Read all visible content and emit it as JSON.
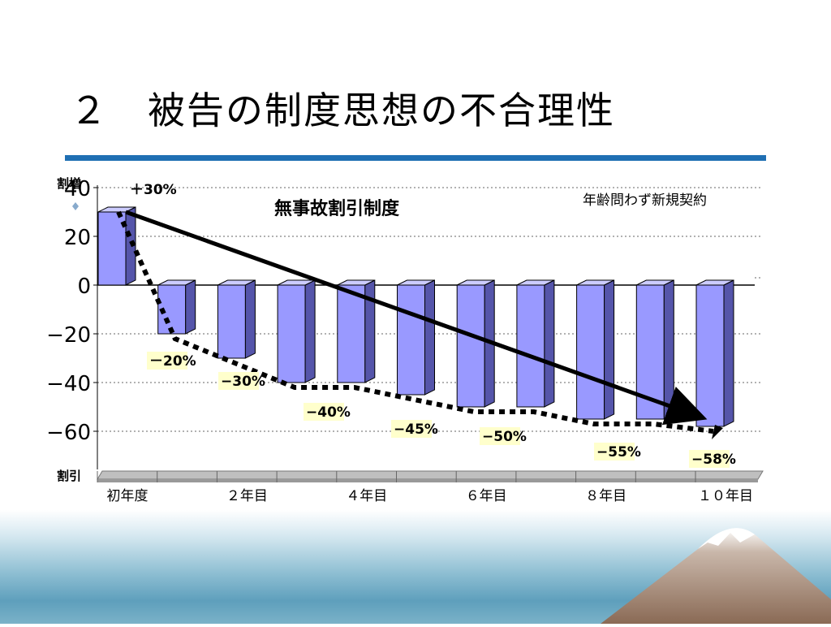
{
  "slide": {
    "title": "２　被告の制度思想の不合理性"
  },
  "chart_data": {
    "type": "bar",
    "title": "無事故割引制度",
    "note": "年齢問わず新規契約",
    "ylabel_top": "割増",
    "ylabel_bottom": "割引",
    "ylim": [
      -70,
      45
    ],
    "yticks": [
      {
        "value": 40,
        "label": "40"
      },
      {
        "value": 20,
        "label": "20"
      },
      {
        "value": 0,
        "label": "0"
      },
      {
        "value": -20,
        "label": "−20"
      },
      {
        "value": -40,
        "label": "−40"
      },
      {
        "value": -60,
        "label": "−60"
      }
    ],
    "categories": [
      "初年度",
      "",
      "２年目",
      "",
      "４年目",
      "",
      "６年目",
      "",
      "８年目",
      "",
      "１０年目"
    ],
    "values": [
      30,
      -20,
      -30,
      -40,
      -40,
      -45,
      -50,
      -50,
      -55,
      -55,
      -58
    ],
    "data_labels": [
      {
        "index": 0,
        "text": "＋30%",
        "highlight": false
      },
      {
        "index": 1,
        "text": "－20%",
        "highlight": true
      },
      {
        "index": 2,
        "text": "−30%",
        "highlight": true
      },
      {
        "index": 4,
        "text": "−40%",
        "highlight": true
      },
      {
        "index": 5,
        "text": "−45%",
        "highlight": true
      },
      {
        "index": 7,
        "text": "−50%",
        "highlight": true
      },
      {
        "index": 9,
        "text": "−55%",
        "highlight": true
      },
      {
        "index": 10,
        "text": "−58%",
        "highlight": true
      }
    ],
    "grid": true,
    "colors": {
      "bar_front": "#9999ff",
      "bar_side": "#5555aa",
      "bar_top": "#ccccff",
      "label_bg": "#ffffcc",
      "floor": "#999999"
    }
  }
}
